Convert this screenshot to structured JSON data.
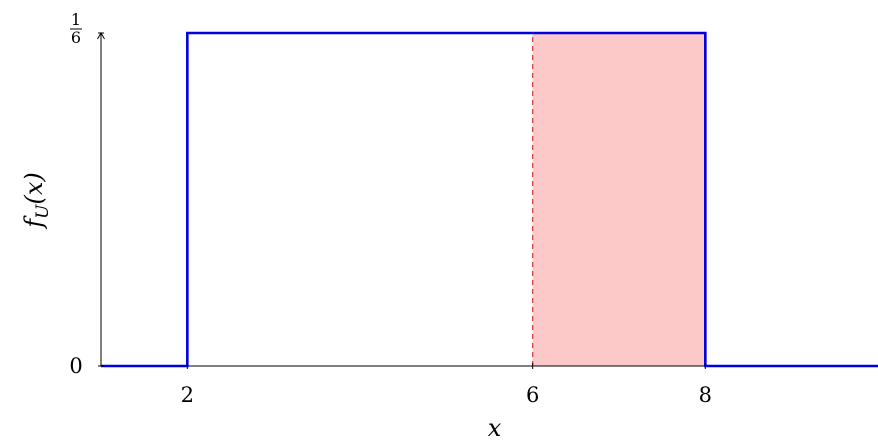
{
  "chart_data": {
    "type": "line",
    "xlabel": "x",
    "ylabel": "f_U(x)",
    "xlim": [
      1,
      10
    ],
    "ylim": [
      0,
      0.16667
    ],
    "x_ticks": [
      {
        "value": 2,
        "label": "2"
      },
      {
        "value": 6,
        "label": "6"
      },
      {
        "value": 8,
        "label": "8"
      }
    ],
    "y_ticks": [
      {
        "value": 0,
        "label": "0"
      },
      {
        "value": 0.16667,
        "numerator": "1",
        "denominator": "6"
      }
    ],
    "series": [
      {
        "color": "#0000dd",
        "x": [
          1,
          2,
          2,
          8,
          8,
          10
        ],
        "y": [
          0,
          0,
          0.16667,
          0.16667,
          0,
          0
        ]
      }
    ],
    "shaded_region": {
      "x_start": 6,
      "x_end": 8,
      "color": "#fcc8c8"
    },
    "reference_line": {
      "x": 6,
      "style": "dashed",
      "color": "#d2363c"
    },
    "grid": false
  }
}
